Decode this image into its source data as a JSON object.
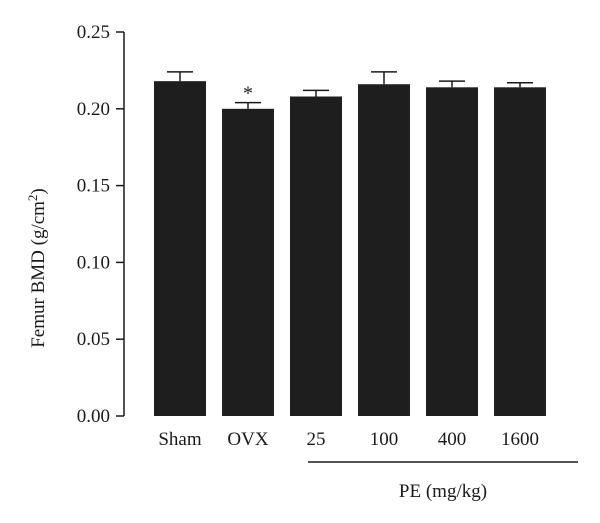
{
  "chart_data": {
    "type": "bar",
    "categories": [
      "Sham",
      "OVX",
      "25",
      "100",
      "400",
      "1600"
    ],
    "values": [
      0.218,
      0.2,
      0.208,
      0.216,
      0.214,
      0.214
    ],
    "errors": [
      0.006,
      0.004,
      0.004,
      0.008,
      0.004,
      0.003
    ],
    "annotations": [
      "",
      "*",
      "",
      "",
      "",
      ""
    ],
    "ylim": [
      0,
      0.25
    ],
    "yticks": [
      "0.00",
      "0.05",
      "0.10",
      "0.15",
      "0.20",
      "0.25"
    ],
    "ylabel_main": "Femur BMD (g/cm",
    "ylabel_sup": "2",
    "ylabel_end": ")",
    "group_label": "PE (mg/kg)",
    "grid": false,
    "bar_color": "#1e1e1e"
  }
}
